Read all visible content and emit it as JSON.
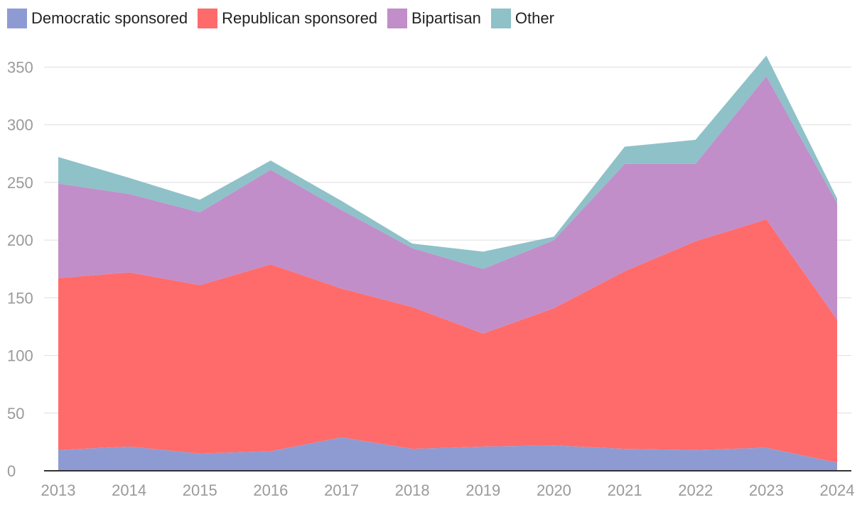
{
  "chart_data": {
    "type": "area",
    "stacked": true,
    "x": [
      "2013",
      "2014",
      "2015",
      "2016",
      "2017",
      "2018",
      "2019",
      "2020",
      "2021",
      "2022",
      "2023",
      "2024"
    ],
    "series": [
      {
        "name": "Democratic sponsored",
        "color": "#8e9bd3",
        "values": [
          18,
          21,
          15,
          17,
          29,
          19,
          21,
          22,
          19,
          18,
          20,
          7
        ]
      },
      {
        "name": "Republican sponsored",
        "color": "#ff6b6b",
        "values": [
          149,
          151,
          146,
          162,
          129,
          123,
          98,
          119,
          154,
          181,
          198,
          124
        ]
      },
      {
        "name": "Bipartisan",
        "color": "#c18ec9",
        "values": [
          82,
          68,
          63,
          82,
          68,
          51,
          56,
          59,
          93,
          67,
          124,
          101
        ]
      },
      {
        "name": "Other",
        "color": "#8fc1c8",
        "values": [
          23,
          14,
          11,
          8,
          8,
          4,
          15,
          3,
          15,
          21,
          18,
          4
        ]
      }
    ],
    "yticks": [
      0,
      50,
      100,
      150,
      200,
      250,
      300,
      350
    ],
    "ylim": [
      0,
      370
    ],
    "grid": true,
    "legend_position": "top-left",
    "xlabel": "",
    "ylabel": ""
  }
}
